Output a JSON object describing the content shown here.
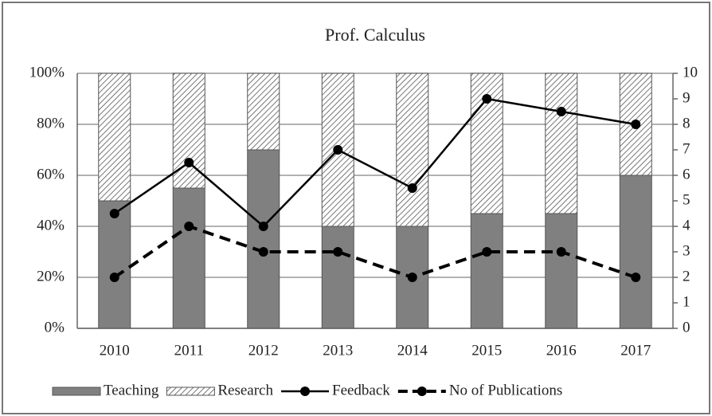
{
  "chart_data": {
    "type": "bar",
    "stacked": true,
    "title": "Prof. Calculus",
    "categories": [
      "2010",
      "2011",
      "2012",
      "2013",
      "2014",
      "2015",
      "2016",
      "2017"
    ],
    "series": [
      {
        "name": "Teaching",
        "type": "bar",
        "color": "#808080",
        "values": [
          50,
          55,
          70,
          40,
          40,
          45,
          45,
          60
        ]
      },
      {
        "name": "Research",
        "type": "bar",
        "color": "hatched",
        "values": [
          50,
          45,
          30,
          60,
          60,
          55,
          55,
          40
        ]
      },
      {
        "name": "Feedback",
        "type": "line",
        "axis": "y2",
        "color": "#000000",
        "dash": "solid",
        "values": [
          4.5,
          6.5,
          4,
          7,
          5.5,
          9,
          8.5,
          8
        ]
      },
      {
        "name": "No of Publications",
        "type": "line",
        "axis": "y2",
        "color": "#000000",
        "dash": "dashed",
        "values": [
          2,
          4,
          3,
          3,
          2,
          3,
          3,
          2
        ]
      }
    ],
    "ylim": [
      0,
      100
    ],
    "yticks": [
      {
        "value": 0,
        "label": "0%"
      },
      {
        "value": 20,
        "label": "20%"
      },
      {
        "value": 40,
        "label": "40%"
      },
      {
        "value": 60,
        "label": "60%"
      },
      {
        "value": 80,
        "label": "80%"
      },
      {
        "value": 100,
        "label": "100%"
      }
    ],
    "y2lim": [
      0,
      10
    ],
    "y2ticks": [
      0,
      1,
      2,
      3,
      4,
      5,
      6,
      7,
      8,
      9,
      10
    ],
    "grid": true,
    "legend": "bottom"
  }
}
